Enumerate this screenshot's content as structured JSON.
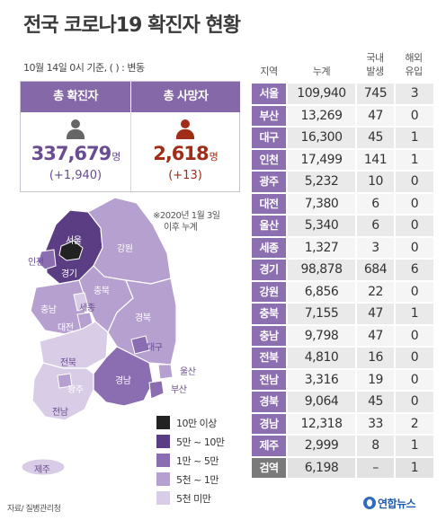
{
  "title": "전국 코로나19 확진자 현황",
  "basis": "10월 14일 0시 기준, ( ) : 변동",
  "totals": {
    "confirmed_label": "총 확진자",
    "confirmed_value": "337,679",
    "confirmed_unit": "명",
    "confirmed_delta": "(+1,940)",
    "deaths_label": "총 사망자",
    "deaths_value": "2,618",
    "deaths_unit": "명",
    "deaths_delta": "(+13)"
  },
  "map": {
    "note_line1": "※2020년 1월 3일",
    "note_line2": "이후 누계",
    "labels": {
      "seoul": "서울",
      "incheon": "인천",
      "gyeonggi": "경기",
      "gangwon": "강원",
      "chungbuk": "충북",
      "chungnam": "충남",
      "sejong": "세종",
      "daejeon": "대전",
      "gyeongbuk": "경북",
      "daegu": "대구",
      "jeonbuk": "전북",
      "gwangju": "광주",
      "jeonnam": "전남",
      "gyeongnam": "경남",
      "ulsan": "울산",
      "busan": "부산",
      "jeju": "제주"
    },
    "colors": {
      "tier1": "#222222",
      "tier2": "#5a3d82",
      "tier3": "#8b6db2",
      "tier4": "#b5a0cf",
      "tier5": "#d8cce6"
    }
  },
  "legend": [
    {
      "label": "10만 이상",
      "color": "#222222"
    },
    {
      "label": "5만 ~ 10만",
      "color": "#5a3d82"
    },
    {
      "label": "1만 ~ 5만",
      "color": "#8b6db2"
    },
    {
      "label": "5천 ~ 1만",
      "color": "#b5a0cf"
    },
    {
      "label": "5천 미만",
      "color": "#d8cce6"
    }
  ],
  "table": {
    "headers": {
      "region": "지역",
      "total": "누계",
      "domestic": "국내\n발생",
      "imported": "해외\n유입"
    },
    "rows": [
      {
        "region": "서울",
        "total": "109,940",
        "domestic": "745",
        "imported": "3"
      },
      {
        "region": "부산",
        "total": "13,269",
        "domestic": "47",
        "imported": "0"
      },
      {
        "region": "대구",
        "total": "16,300",
        "domestic": "45",
        "imported": "1"
      },
      {
        "region": "인천",
        "total": "17,499",
        "domestic": "141",
        "imported": "1"
      },
      {
        "region": "광주",
        "total": "5,232",
        "domestic": "10",
        "imported": "0"
      },
      {
        "region": "대전",
        "total": "7,380",
        "domestic": "6",
        "imported": "0"
      },
      {
        "region": "울산",
        "total": "5,340",
        "domestic": "6",
        "imported": "0"
      },
      {
        "region": "세종",
        "total": "1,327",
        "domestic": "3",
        "imported": "0"
      },
      {
        "region": "경기",
        "total": "98,878",
        "domestic": "684",
        "imported": "6"
      },
      {
        "region": "강원",
        "total": "6,856",
        "domestic": "22",
        "imported": "0"
      },
      {
        "region": "충북",
        "total": "7,155",
        "domestic": "47",
        "imported": "1"
      },
      {
        "region": "충남",
        "total": "9,798",
        "domestic": "47",
        "imported": "0"
      },
      {
        "region": "전북",
        "total": "4,810",
        "domestic": "16",
        "imported": "0"
      },
      {
        "region": "전남",
        "total": "3,316",
        "domestic": "19",
        "imported": "0"
      },
      {
        "region": "경북",
        "total": "9,064",
        "domestic": "45",
        "imported": "0"
      },
      {
        "region": "경남",
        "total": "12,318",
        "domestic": "33",
        "imported": "2"
      },
      {
        "region": "제주",
        "total": "2,999",
        "domestic": "8",
        "imported": "1"
      },
      {
        "region": "검역",
        "total": "6,198",
        "domestic": "–",
        "imported": "1"
      }
    ]
  },
  "source": "자료/ 질병관리청",
  "brand": "연합뉴스"
}
